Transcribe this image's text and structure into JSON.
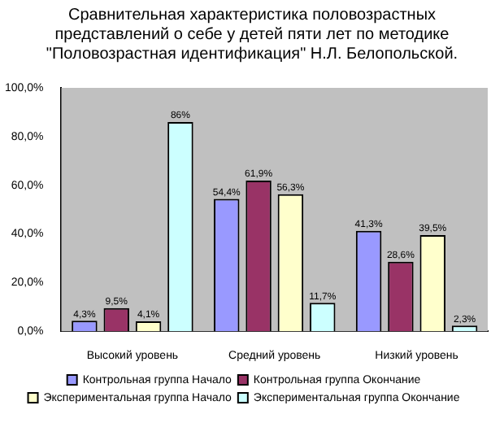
{
  "chart_data": {
    "type": "bar",
    "title": "Сравнительная характеристика половозрастных представлений о себе у детей пяти лет по методике \"Половозрастная идентификация\" Н.Л. Белопольской.",
    "categories": [
      "Высокий уровень",
      "Средний уровень",
      "Низкий уровень"
    ],
    "series": [
      {
        "name": "Контрольная группа Начало",
        "color": "#9999ff",
        "values": [
          4.3,
          54.4,
          41.3
        ],
        "value_labels": [
          "4,3%",
          "54,4%",
          "41,3%"
        ]
      },
      {
        "name": "Контрольная группа Окончание",
        "color": "#993366",
        "values": [
          9.5,
          61.9,
          28.6
        ],
        "value_labels": [
          "9,5%",
          "61,9%",
          "28,6%"
        ]
      },
      {
        "name": "Экспериментальная группа Начало",
        "color": "#ffffcc",
        "values": [
          4.1,
          56.3,
          39.5
        ],
        "value_labels": [
          "4,1%",
          "56,3%",
          "39,5%"
        ]
      },
      {
        "name": "Экспериментальная группа Окончание",
        "color": "#ccffff",
        "values": [
          86,
          11.7,
          2.3
        ],
        "value_labels": [
          "86%",
          "11,7%",
          "2,3%"
        ]
      }
    ],
    "ylim": [
      0,
      100
    ],
    "yticks": [
      {
        "value": 0,
        "label": "0,0%"
      },
      {
        "value": 20,
        "label": "20,0%"
      },
      {
        "value": 40,
        "label": "40,0%"
      },
      {
        "value": 60,
        "label": "60,0%"
      },
      {
        "value": 80,
        "label": "80,0%"
      },
      {
        "value": 100,
        "label": "100,0%"
      }
    ],
    "grid": false,
    "legend": "bottom"
  }
}
